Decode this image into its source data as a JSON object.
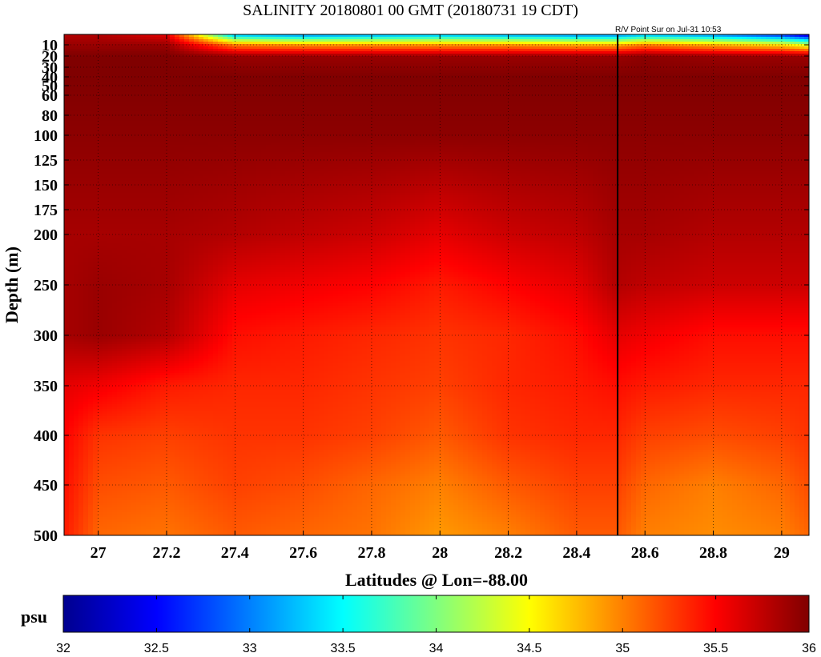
{
  "chart_data": {
    "type": "heatmap",
    "title": "SALINITY 20180801 00 GMT (20180731 19 CDT)",
    "annotation": "R/V Point Sur on Jul-31 10:53",
    "xlabel": "Latitudes @ Lon=-88.00",
    "ylabel": "Depth (m)",
    "xlim": [
      26.9,
      29.08
    ],
    "ylim": [
      500,
      0
    ],
    "y_scale": "stretched (non-linear depth axis, expanded near surface)",
    "x_ticks": [
      27,
      27.2,
      27.4,
      27.6,
      27.8,
      28,
      28.2,
      28.4,
      28.6,
      28.8,
      29
    ],
    "y_ticks": [
      10,
      20,
      30,
      40,
      50,
      60,
      80,
      100,
      125,
      150,
      175,
      200,
      250,
      300,
      350,
      400,
      450,
      500
    ],
    "grid": true,
    "vertical_line_lat": 28.52,
    "colorbar": {
      "label": "psu",
      "range": [
        32,
        36
      ],
      "ticks": [
        32,
        32.5,
        33,
        33.5,
        34,
        34.5,
        35,
        35.5,
        36
      ],
      "colormap": "jet",
      "colors": [
        "#00008f",
        "#0000ff",
        "#00ffff",
        "#ffff00",
        "#ff0000",
        "#800000"
      ]
    },
    "surface_layer": {
      "lat": [
        26.9,
        27.25,
        27.35,
        27.5,
        28.0,
        28.5,
        28.9,
        29.08
      ],
      "salinity": [
        35.8,
        35.3,
        33.2,
        33.0,
        33.2,
        33.0,
        32.6,
        32.2
      ]
    },
    "profiles": {
      "depth": [
        0,
        10,
        20,
        40,
        100,
        200,
        250,
        300,
        350,
        400,
        450,
        500
      ],
      "lat": [
        26.9,
        27.0,
        27.2,
        27.4,
        27.6,
        27.8,
        28.0,
        28.2,
        28.4,
        28.52,
        28.6,
        28.8,
        29.0,
        29.08
      ],
      "salinity": [
        [
          35.8,
          35.8,
          35.6,
          33.2,
          33.0,
          33.1,
          33.2,
          33.1,
          33.0,
          33.0,
          33.2,
          33.0,
          32.6,
          32.2
        ],
        [
          35.9,
          35.9,
          35.9,
          35.0,
          34.9,
          34.9,
          34.9,
          34.9,
          34.8,
          34.8,
          35.0,
          34.8,
          34.6,
          34.3
        ],
        [
          36.0,
          36.0,
          36.0,
          35.9,
          35.9,
          35.9,
          35.9,
          35.9,
          35.9,
          35.9,
          35.95,
          35.9,
          35.9,
          35.9
        ],
        [
          36.0,
          36.0,
          36.0,
          36.0,
          36.0,
          36.0,
          36.0,
          36.0,
          36.0,
          36.0,
          36.0,
          36.0,
          36.0,
          36.0
        ],
        [
          35.95,
          35.95,
          35.95,
          35.95,
          35.95,
          35.95,
          35.95,
          35.95,
          35.95,
          35.95,
          35.95,
          35.95,
          35.95,
          35.95
        ],
        [
          35.85,
          35.85,
          35.85,
          35.8,
          35.75,
          35.7,
          35.6,
          35.7,
          35.75,
          35.85,
          35.85,
          35.8,
          35.8,
          35.8
        ],
        [
          35.85,
          35.9,
          35.85,
          35.6,
          35.55,
          35.5,
          35.4,
          35.5,
          35.6,
          35.8,
          35.75,
          35.7,
          35.7,
          35.7
        ],
        [
          35.85,
          35.9,
          35.8,
          35.45,
          35.4,
          35.35,
          35.3,
          35.35,
          35.45,
          35.6,
          35.55,
          35.45,
          35.45,
          35.45
        ],
        [
          35.6,
          35.55,
          35.4,
          35.35,
          35.35,
          35.3,
          35.25,
          35.35,
          35.4,
          35.45,
          35.4,
          35.35,
          35.35,
          35.35
        ],
        [
          35.5,
          35.3,
          35.25,
          35.3,
          35.3,
          35.25,
          35.15,
          35.3,
          35.35,
          35.35,
          35.25,
          35.2,
          35.25,
          35.3
        ],
        [
          35.45,
          35.2,
          35.15,
          35.25,
          35.2,
          35.1,
          35.0,
          35.15,
          35.25,
          35.25,
          35.1,
          35.0,
          35.1,
          35.2
        ],
        [
          35.4,
          35.1,
          35.05,
          35.15,
          35.1,
          35.05,
          34.9,
          35.0,
          35.15,
          35.15,
          35.0,
          34.95,
          35.0,
          35.1
        ]
      ]
    }
  }
}
